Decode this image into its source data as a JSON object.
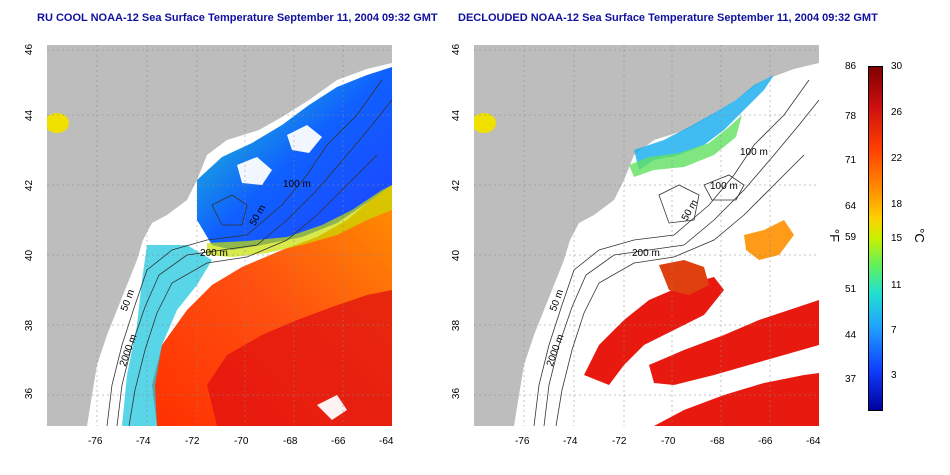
{
  "titles": {
    "left": "RU COOL NOAA-12 Sea Surface Temperature September 11, 2004 09:32 GMT",
    "right": "DECLOUDED NOAA-12 Sea Surface Temperature September 11, 2004 09:32 GMT"
  },
  "axes": {
    "lon_ticks": [
      "-76",
      "-74",
      "-72",
      "-70",
      "-68",
      "-66",
      "-64"
    ],
    "lat_ticks": [
      "46",
      "44",
      "42",
      "40",
      "38",
      "36"
    ]
  },
  "contour_labels": {
    "left": [
      "100 m",
      "50 m",
      "200 m",
      "50 m",
      "2000 m"
    ],
    "right": [
      "100 m",
      "100 m",
      "50 m",
      "200 m",
      "50 m",
      "2000 m"
    ]
  },
  "colorbar": {
    "fahrenheit_ticks": [
      "86",
      "78",
      "71",
      "64",
      "59",
      "51",
      "44",
      "37"
    ],
    "celsius_ticks": [
      "30",
      "26",
      "22",
      "18",
      "15",
      "11",
      "7",
      "3"
    ],
    "fahrenheit_unit": "°F",
    "celsius_unit": "°C",
    "colors": [
      "#7f0000",
      "#d01010",
      "#ff4000",
      "#ff9000",
      "#ffd000",
      "#c8f000",
      "#60f060",
      "#20e0d0",
      "#20a0ff",
      "#1040ff",
      "#0000a0"
    ]
  },
  "colors": {
    "land": "#bdbdbd",
    "water_masked": "#ffffff",
    "title": "#1010a0"
  }
}
